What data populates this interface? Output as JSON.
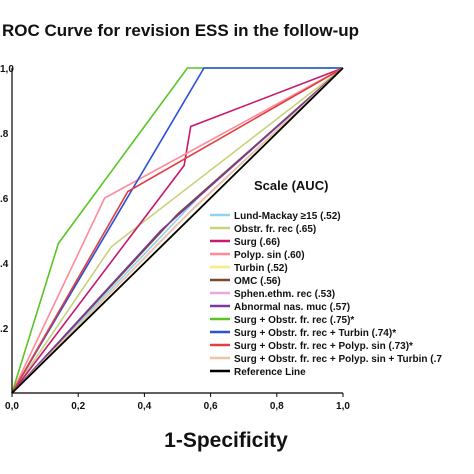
{
  "chart_data": {
    "type": "line",
    "title": "ROC Curve for revision ESS in the follow-up",
    "xlabel": "1-Specificity",
    "ylabel": "",
    "xlim": [
      0,
      1
    ],
    "ylim": [
      0,
      1
    ],
    "x_ticks": [
      "0,0",
      "0,2",
      "0,4",
      "0,6",
      "0,8",
      "1,0"
    ],
    "y_ticks": [
      ".2",
      ".4",
      ".6",
      ".8",
      "1,0"
    ],
    "y_tick_values": [
      0.2,
      0.4,
      0.6,
      0.8,
      1.0
    ],
    "grid": false,
    "legend_title": "Scale (AUC)",
    "legend_placement": "right",
    "series": [
      {
        "name": "Lund-Mackay ≥15 (.52)",
        "color": "#8fd3f0",
        "x": [
          0,
          0.58,
          1
        ],
        "y": [
          0,
          0.62,
          1
        ]
      },
      {
        "name": "Obstr. fr. rec (.65)",
        "color": "#c8d27a",
        "x": [
          0,
          0.3,
          1
        ],
        "y": [
          0,
          0.45,
          1
        ]
      },
      {
        "name": "Surg (.66)",
        "color": "#c8186f",
        "x": [
          0,
          0.52,
          0.54,
          1
        ],
        "y": [
          0,
          0.7,
          0.82,
          1
        ]
      },
      {
        "name": "Polyp. sin (.60)",
        "color": "#ff8a9a",
        "x": [
          0,
          0.28,
          1
        ],
        "y": [
          0,
          0.6,
          1
        ]
      },
      {
        "name": "Turbin (.52)",
        "color": "#f2ee7a",
        "x": [
          0,
          0.6,
          1
        ],
        "y": [
          0,
          0.6,
          1
        ]
      },
      {
        "name": "OMC (.56)",
        "color": "#7a4a2a",
        "x": [
          0,
          0.5,
          1
        ],
        "y": [
          0,
          0.55,
          1
        ]
      },
      {
        "name": "Sphen.ethm. rec (.53)",
        "color": "#e8a8e0",
        "x": [
          0,
          0.55,
          1
        ],
        "y": [
          0,
          0.57,
          1
        ]
      },
      {
        "name": "Abnormal nas. muc (.57)",
        "color": "#7a3a9a",
        "x": [
          0,
          0.45,
          1
        ],
        "y": [
          0,
          0.5,
          1
        ]
      },
      {
        "name": "Surg + Obstr. fr. rec (.75)*",
        "color": "#5bc423",
        "x": [
          0,
          0.14,
          0.53,
          1
        ],
        "y": [
          0,
          0.46,
          1,
          1
        ]
      },
      {
        "name": "Surg + Obstr. fr. rec + Turbin (.74)*",
        "color": "#2a4fd8",
        "x": [
          0,
          0.58,
          0.6,
          1
        ],
        "y": [
          0,
          1,
          1,
          1
        ]
      },
      {
        "name": "Surg + Obstr. fr. rec + Polyp. sin (.73)*",
        "color": "#e04040",
        "x": [
          0,
          0.35,
          1
        ],
        "y": [
          0,
          0.62,
          1
        ]
      },
      {
        "name": "Surg + Obstr. fr. rec + Polyp. sin + Turbin (.7",
        "color": "#e8c8a0",
        "x": [
          0,
          0.5,
          1
        ],
        "y": [
          0,
          0.52,
          1
        ]
      },
      {
        "name": "Reference Line",
        "color": "#000000",
        "x": [
          0,
          1
        ],
        "y": [
          0,
          1
        ]
      }
    ]
  }
}
